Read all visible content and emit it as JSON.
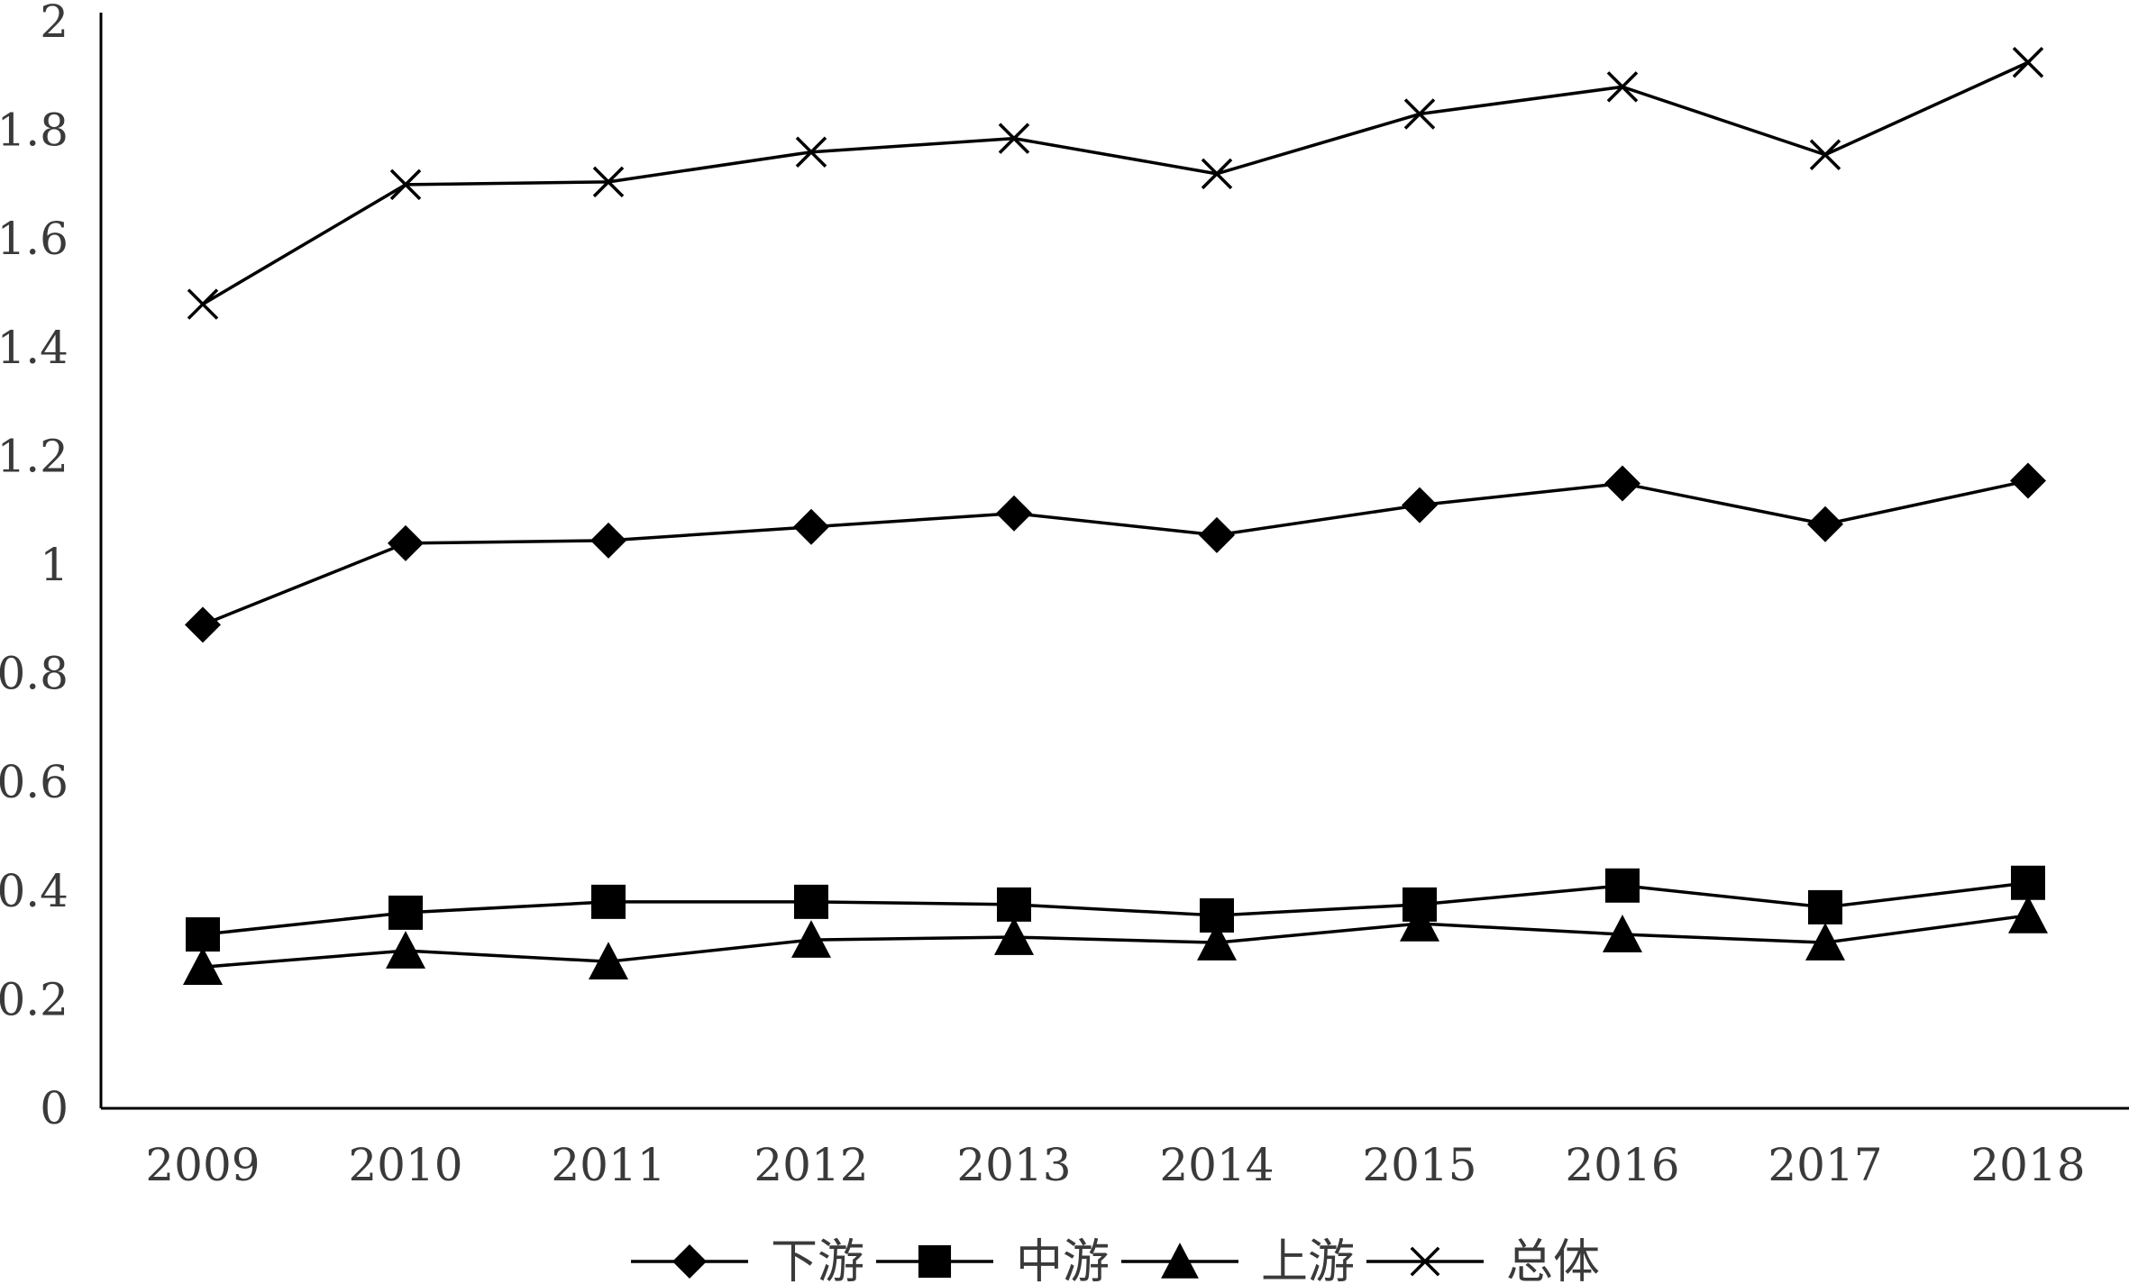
{
  "colors": {
    "series": "#000000",
    "axis": "#000000",
    "text": "#3a3a3a"
  },
  "chart_data": {
    "type": "line",
    "title": "",
    "xlabel": "",
    "ylabel": "",
    "categories": [
      "2009",
      "2010",
      "2011",
      "2012",
      "2013",
      "2014",
      "2015",
      "2016",
      "2017",
      "2018"
    ],
    "ylim": [
      0,
      2
    ],
    "yticks": [
      "0",
      "0.2",
      "0.4",
      "0.6",
      "0.8",
      "1",
      "1.2",
      "1.4",
      "1.6",
      "1.8",
      "2"
    ],
    "grid": false,
    "legend_position": "bottom",
    "series": [
      {
        "name": "下游",
        "marker": "diamond",
        "values": [
          0.89,
          1.04,
          1.045,
          1.07,
          1.095,
          1.055,
          1.11,
          1.15,
          1.075,
          1.155
        ]
      },
      {
        "name": "中游",
        "marker": "square",
        "values": [
          0.32,
          0.36,
          0.38,
          0.38,
          0.375,
          0.355,
          0.375,
          0.41,
          0.37,
          0.415
        ]
      },
      {
        "name": "上游",
        "marker": "triangle",
        "values": [
          0.26,
          0.29,
          0.27,
          0.31,
          0.315,
          0.305,
          0.34,
          0.32,
          0.305,
          0.355
        ]
      },
      {
        "name": "总体",
        "marker": "x",
        "values": [
          1.48,
          1.7,
          1.705,
          1.76,
          1.785,
          1.72,
          1.83,
          1.88,
          1.755,
          1.925
        ]
      }
    ]
  }
}
